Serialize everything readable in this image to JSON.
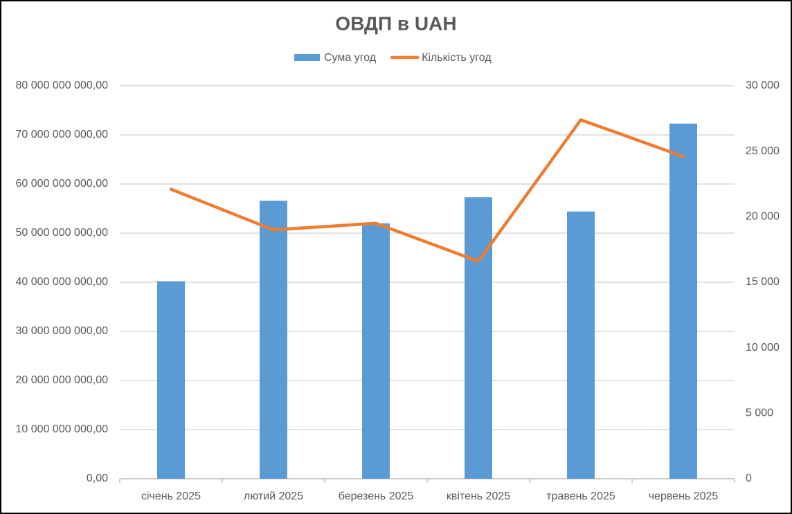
{
  "chart_data": {
    "type": "bar-line",
    "title": "ОВДП в UAH",
    "categories": [
      "січень 2025",
      "лютий 2025",
      "березень 2025",
      "квітень 2025",
      "травень 2025",
      "червень 2025"
    ],
    "series": [
      {
        "name": "Сума угод",
        "type": "bar",
        "color": "#5b9bd5",
        "values": [
          40200000000,
          56600000000,
          52000000000,
          57300000000,
          54400000000,
          72300000000
        ]
      },
      {
        "name": "Кількість угод",
        "type": "line",
        "axis": "y2",
        "color": "#ed7d31",
        "values": [
          22100,
          19000,
          19500,
          16600,
          27400,
          24600
        ]
      }
    ],
    "ylim": [
      0,
      80000000000
    ],
    "yticks": [
      {
        "value": 0,
        "label": "0,00"
      },
      {
        "value": 10000000000,
        "label": "10 000 000 000,00"
      },
      {
        "value": 20000000000,
        "label": "20 000 000 000,00"
      },
      {
        "value": 30000000000,
        "label": "30 000 000 000,00"
      },
      {
        "value": 40000000000,
        "label": "40 000 000 000,00"
      },
      {
        "value": 50000000000,
        "label": "50 000 000 000,00"
      },
      {
        "value": 60000000000,
        "label": "60 000 000 000,00"
      },
      {
        "value": 70000000000,
        "label": "70 000 000 000,00"
      },
      {
        "value": 80000000000,
        "label": "80 000 000 000,00"
      }
    ],
    "y2lim": [
      0,
      30000
    ],
    "y2ticks": [
      0,
      {
        "value": 5000,
        "label": "5 000"
      },
      {
        "value": 10000,
        "label": "10 000"
      },
      {
        "value": 15000,
        "label": "15 000"
      },
      {
        "value": 20000,
        "label": "20 000"
      },
      {
        "value": 25000,
        "label": "25 000"
      },
      {
        "value": 30000,
        "label": "30 000"
      }
    ],
    "grid": true,
    "legend": "top"
  }
}
